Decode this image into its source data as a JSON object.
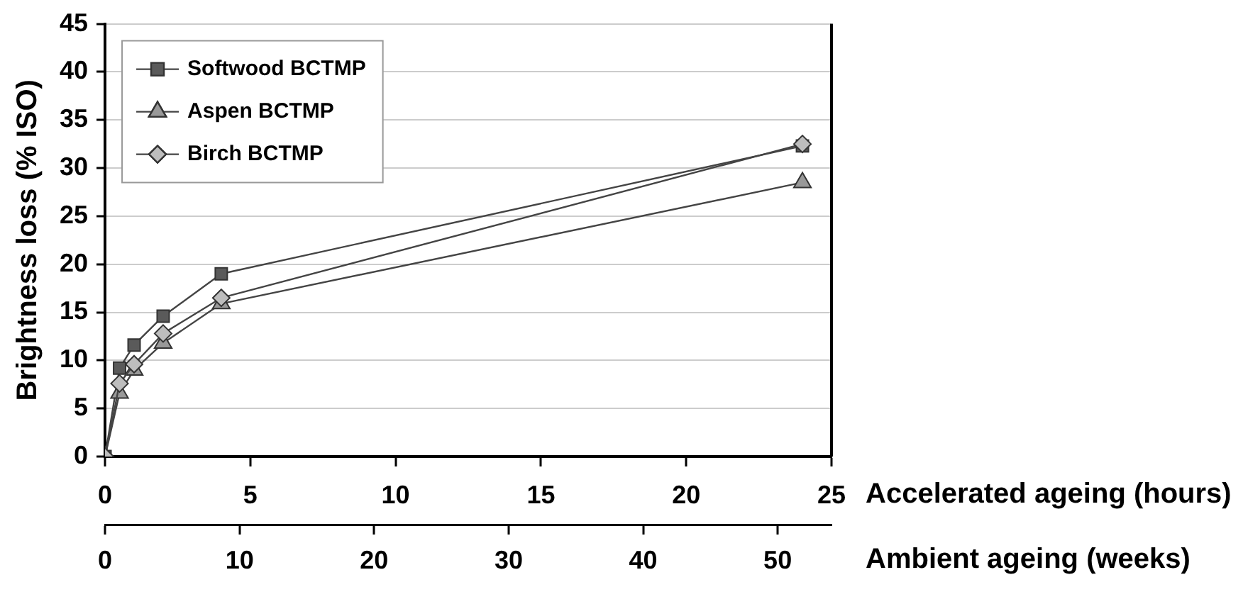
{
  "chart_data": {
    "type": "line",
    "xlabel": "Accelerated ageing (hours)",
    "x2label": "Ambient ageing (weeks)",
    "ylabel": "Brightness loss (% ISO)",
    "x": [
      0,
      0.5,
      1,
      2,
      4,
      24
    ],
    "xlim": [
      0,
      25
    ],
    "xticks": [
      0,
      5,
      10,
      15,
      20,
      25
    ],
    "x2lim": [
      0,
      54
    ],
    "x2ticks": [
      0,
      10,
      20,
      30,
      40,
      50
    ],
    "ylim": [
      0,
      45
    ],
    "yticks": [
      0,
      5,
      10,
      15,
      20,
      25,
      30,
      35,
      40,
      45
    ],
    "grid": "y",
    "legend": "top left",
    "line_style": "solid",
    "series": [
      {
        "name": "Softwood BCTMP",
        "color": "#5a5a5a",
        "marker": "square",
        "values": [
          0,
          9.2,
          11.6,
          14.6,
          19,
          32.3
        ]
      },
      {
        "name": "Aspen BCTMP",
        "color": "#999999",
        "marker": "triangle",
        "values": [
          0,
          6.6,
          9,
          11.8,
          15.9,
          28.5
        ]
      },
      {
        "name": "Birch BCTMP",
        "color": "#bdbdbd",
        "marker": "diamond",
        "values": [
          0,
          7.6,
          9.6,
          12.8,
          16.5,
          32.5
        ]
      }
    ]
  }
}
